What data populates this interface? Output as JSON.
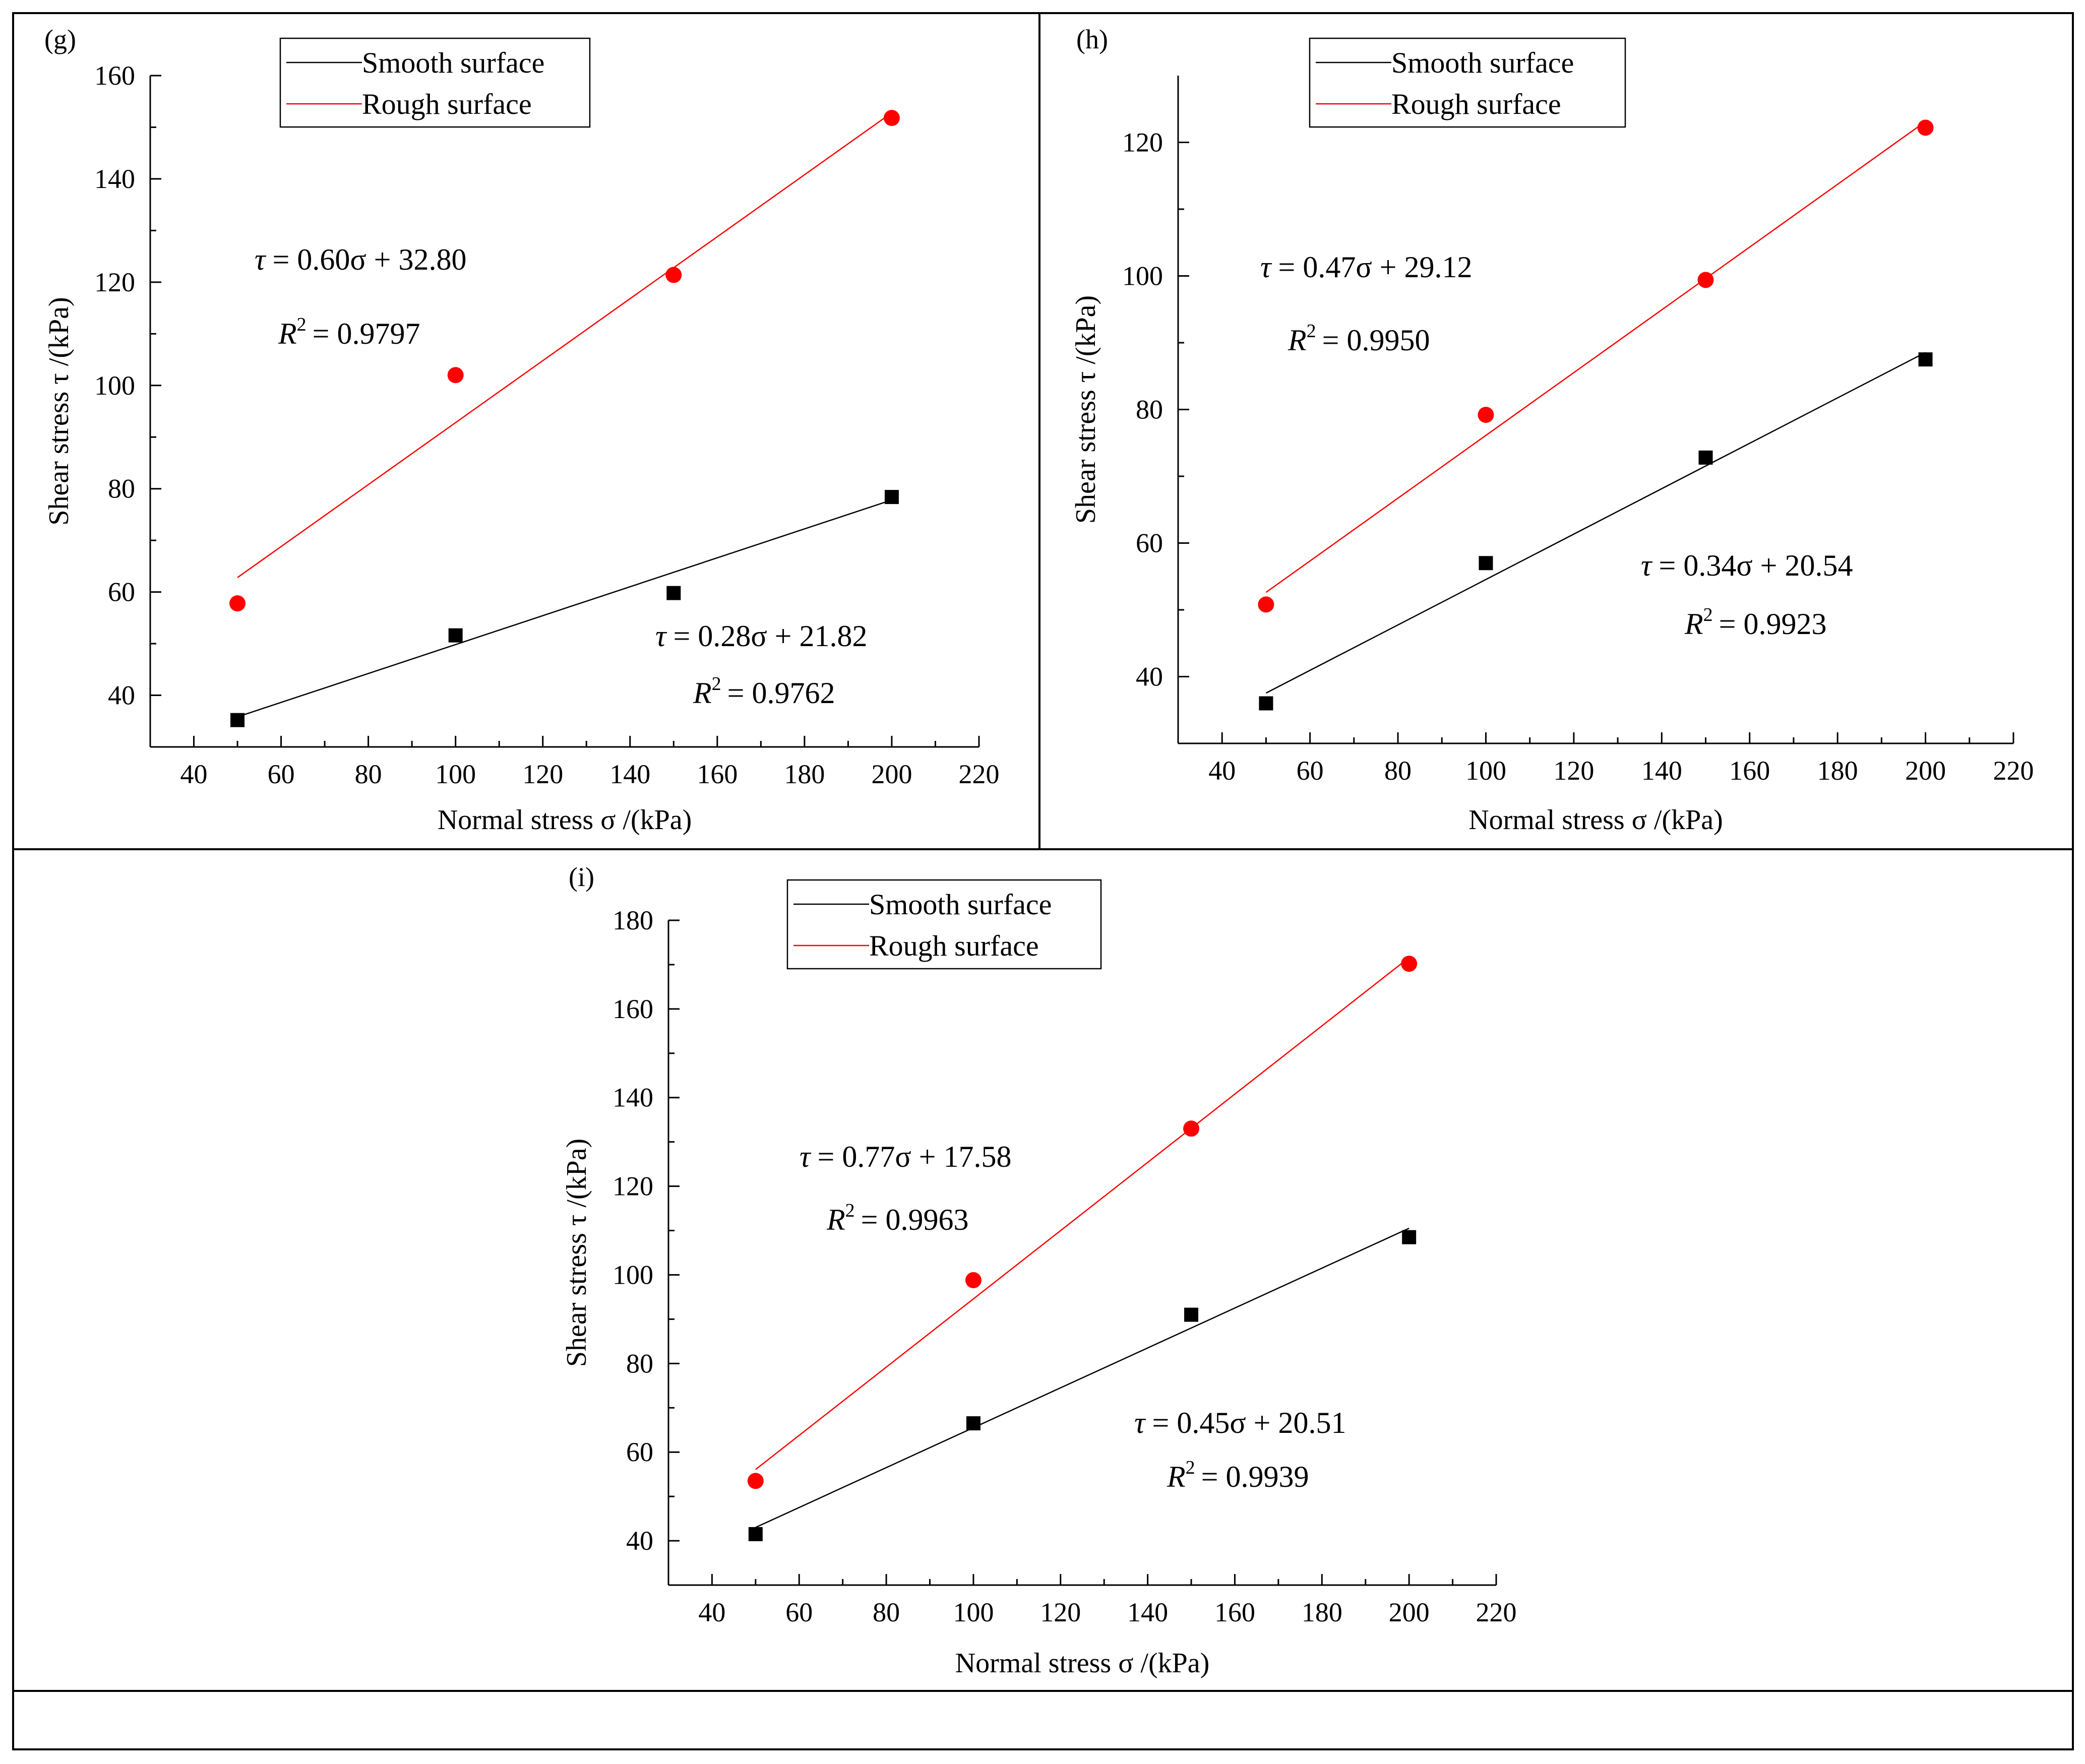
{
  "figure": {
    "panels": [
      {
        "id": "g",
        "label": "(g)"
      },
      {
        "id": "h",
        "label": "(h)"
      },
      {
        "id": "i",
        "label": "(i)"
      }
    ]
  },
  "colors": {
    "smooth": "#000000",
    "rough": "#ff0000",
    "frame": "#000000"
  },
  "chart_data": [
    {
      "panel": "(g)",
      "type": "scatter",
      "xlabel": "Normal stress σ /(kPa)",
      "ylabel": "Shear stress τ /(kPa)",
      "xlim": [
        30,
        220
      ],
      "ylim": [
        30,
        160
      ],
      "xticks": [
        40,
        60,
        80,
        100,
        120,
        140,
        160,
        180,
        200,
        220
      ],
      "yticks": [
        40,
        60,
        80,
        100,
        120,
        140,
        160
      ],
      "legend": [
        "Smooth surface",
        "Rough surface"
      ],
      "series": [
        {
          "name": "Smooth surface",
          "marker": "square",
          "x": [
            50,
            100,
            150,
            200
          ],
          "y": [
            35.2,
            51.6,
            59.8,
            78.4
          ],
          "fit": {
            "slope": 0.28,
            "intercept": 21.82,
            "equation_lhs": "τ",
            "equation_rhs": "= 0.28σ + 21.82",
            "r2_label": "R",
            "r2_text": "= 0.9762"
          }
        },
        {
          "name": "Rough surface",
          "marker": "circle",
          "x": [
            50,
            100,
            150,
            200
          ],
          "y": [
            57.8,
            102.0,
            121.4,
            151.8
          ],
          "fit": {
            "slope": 0.6,
            "intercept": 32.8,
            "equation_lhs": "τ",
            "equation_rhs": "= 0.60σ + 32.80",
            "r2_label": "R",
            "r2_text": "= 0.9797"
          }
        }
      ]
    },
    {
      "panel": "(h)",
      "type": "scatter",
      "xlabel": "Normal stress σ /(kPa)",
      "ylabel": "Shear stress τ /(kPa)",
      "xlim": [
        30,
        220
      ],
      "ylim": [
        30,
        130
      ],
      "xticks": [
        40,
        60,
        80,
        100,
        120,
        140,
        160,
        180,
        200,
        220
      ],
      "yticks": [
        40,
        60,
        80,
        100,
        120
      ],
      "legend": [
        "Smooth surface",
        "Rough surface"
      ],
      "series": [
        {
          "name": "Smooth surface",
          "marker": "square",
          "x": [
            50,
            100,
            150,
            200
          ],
          "y": [
            36.0,
            57.0,
            72.8,
            87.5
          ],
          "fit": {
            "slope": 0.34,
            "intercept": 20.54,
            "equation_lhs": "τ",
            "equation_rhs": "= 0.34σ + 20.54",
            "r2_label": "R",
            "r2_text": "= 0.9923"
          }
        },
        {
          "name": "Rough surface",
          "marker": "circle",
          "x": [
            50,
            100,
            150,
            200
          ],
          "y": [
            50.8,
            79.2,
            99.4,
            122.2
          ],
          "fit": {
            "slope": 0.47,
            "intercept": 29.12,
            "equation_lhs": "τ",
            "equation_rhs": "= 0.47σ + 29.12",
            "r2_label": "R",
            "r2_text": "= 0.9950"
          }
        }
      ]
    },
    {
      "panel": "(i)",
      "type": "scatter",
      "xlabel": "Normal stress σ /(kPa)",
      "ylabel": "Shear stress τ /(kPa)",
      "xlim": [
        30,
        220
      ],
      "ylim": [
        30,
        180
      ],
      "xticks": [
        40,
        60,
        80,
        100,
        120,
        140,
        160,
        180,
        200,
        220
      ],
      "yticks": [
        40,
        60,
        80,
        100,
        120,
        140,
        160,
        180
      ],
      "legend": [
        "Smooth surface",
        "Rough surface"
      ],
      "series": [
        {
          "name": "Smooth surface",
          "marker": "square",
          "x": [
            50,
            100,
            150,
            200
          ],
          "y": [
            41.5,
            66.5,
            91.0,
            108.5
          ],
          "fit": {
            "slope": 0.45,
            "intercept": 20.51,
            "equation_lhs": "τ",
            "equation_rhs": "= 0.45σ + 20.51",
            "r2_label": "R",
            "r2_text": "= 0.9939"
          }
        },
        {
          "name": "Rough surface",
          "marker": "circle",
          "x": [
            50,
            100,
            150,
            200
          ],
          "y": [
            53.5,
            98.8,
            133.0,
            170.2
          ],
          "fit": {
            "slope": 0.77,
            "intercept": 17.58,
            "equation_lhs": "τ",
            "equation_rhs": "= 0.77σ + 17.58",
            "r2_label": "R",
            "r2_text": "= 0.9963"
          }
        }
      ]
    }
  ]
}
